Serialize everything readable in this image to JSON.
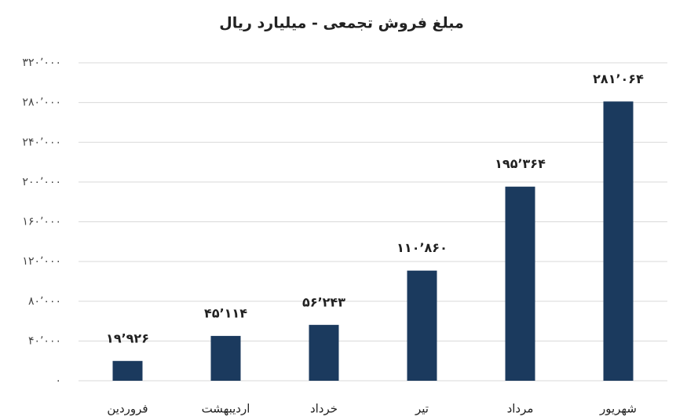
{
  "chart_data": {
    "type": "bar",
    "title": "مبلغ فروش تجمعی - میلیارد ریال",
    "categories": [
      "فروردین",
      "اردیبهشت",
      "خرداد",
      "تیر",
      "مرداد",
      "شهریور"
    ],
    "values": [
      19926,
      45114,
      56243,
      110860,
      195364,
      281064
    ],
    "value_labels": [
      "۱۹٬۹۲۶",
      "۴۵٬۱۱۴",
      "۵۶٬۲۴۳",
      "۱۱۰٬۸۶۰",
      "۱۹۵٬۳۶۴",
      "۲۸۱٬۰۶۴"
    ],
    "color": "#1b3a5e",
    "ylim": [
      0,
      320000
    ],
    "yticks": [
      {
        "value": 0,
        "label": "۰"
      },
      {
        "value": 40000,
        "label": "۴۰٬۰۰۰"
      },
      {
        "value": 80000,
        "label": "۸۰٬۰۰۰"
      },
      {
        "value": 120000,
        "label": "۱۲۰٬۰۰۰"
      },
      {
        "value": 160000,
        "label": "۱۶۰٬۰۰۰"
      },
      {
        "value": 200000,
        "label": "۲۰۰٬۰۰۰"
      },
      {
        "value": 240000,
        "label": "۲۴۰٬۰۰۰"
      },
      {
        "value": 280000,
        "label": "۲۸۰٬۰۰۰"
      },
      {
        "value": 320000,
        "label": "۳۲۰٬۰۰۰"
      }
    ],
    "grid": true
  }
}
